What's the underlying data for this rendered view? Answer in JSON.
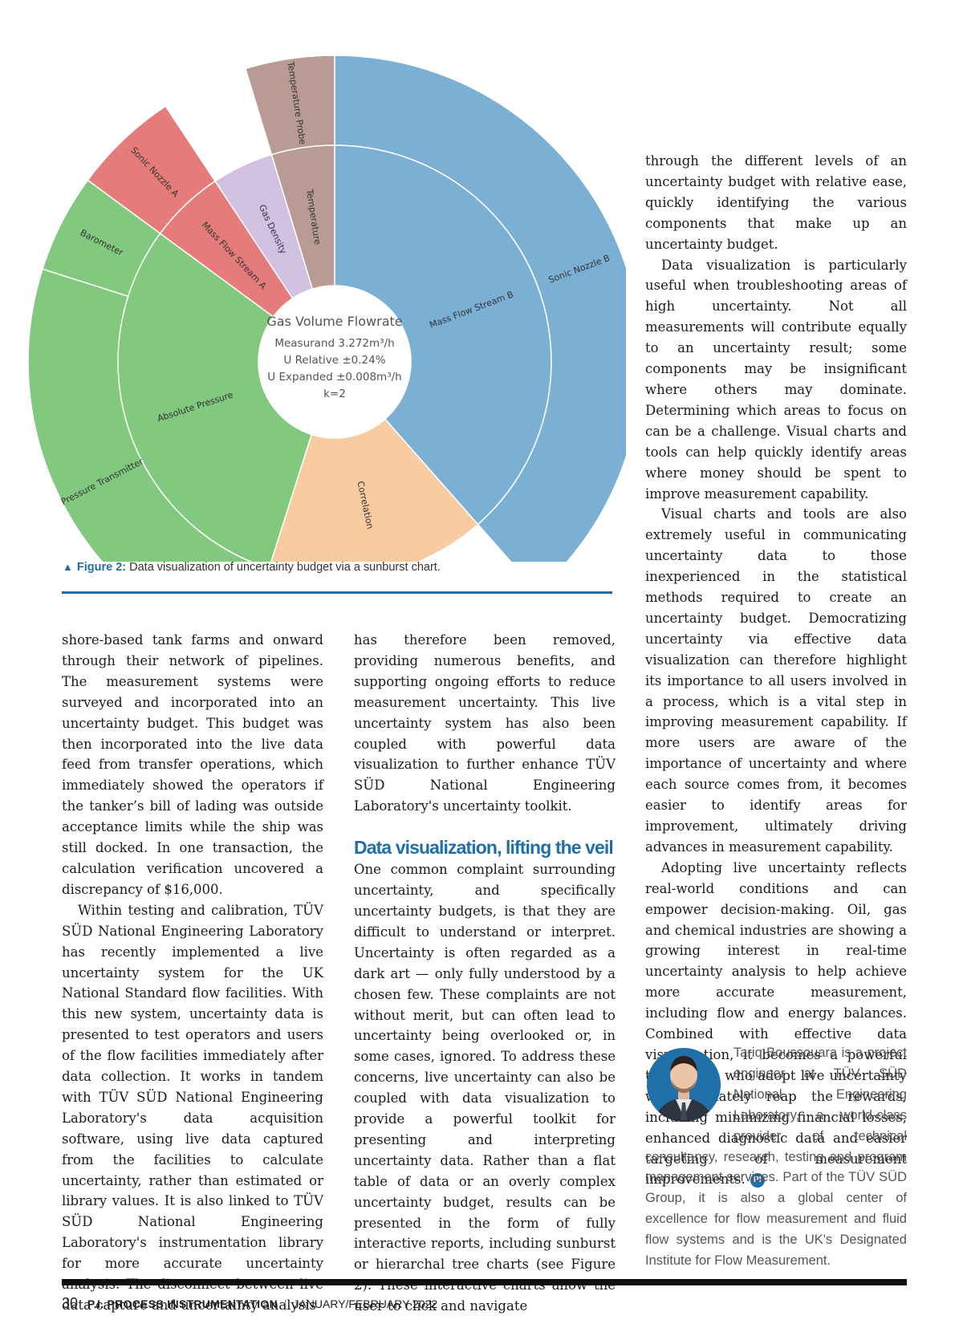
{
  "chart_data": {
    "type": "sunburst",
    "center": {
      "title": "Gas Volume Flowrate",
      "lines": [
        "Measurand 3.272m³/h",
        "U Relative ±0.24%",
        "U Expanded ±0.008m³/h",
        "k=2"
      ]
    },
    "inner_ring": [
      {
        "name": "Mass Flow Stream B",
        "share": 0.385,
        "color": "#7bafd4"
      },
      {
        "name": "Correlation",
        "share": 0.164,
        "color": "#f8cba0"
      },
      {
        "name": "Absolute Pressure",
        "share": 0.302,
        "color": "#82c87e"
      },
      {
        "name": "Mass Flow Stream A",
        "share": 0.056,
        "color": "#e57b7b"
      },
      {
        "name": "Gas Density",
        "share": 0.046,
        "color": "#d2c0e2"
      },
      {
        "name": "Temperature",
        "share": 0.047,
        "color": "#b99b93"
      }
    ],
    "outer_ring": [
      {
        "name": "Sonic Nozzle B",
        "parent": "Mass Flow Stream B",
        "share": 0.385,
        "color": "#7bafd4"
      },
      {
        "name": "Pressure Transmitter",
        "parent": "Absolute Pressure",
        "share": 0.25,
        "color": "#82c87e"
      },
      {
        "name": "Barometer",
        "parent": "Absolute Pressure",
        "share": 0.052,
        "color": "#82c87e"
      },
      {
        "name": "Sonic Nozzle A",
        "parent": "Mass Flow Stream A",
        "share": 0.056,
        "color": "#e57b7b"
      },
      {
        "name": "Temperature Probe",
        "parent": "Temperature",
        "share": 0.047,
        "color": "#b99b93"
      }
    ]
  },
  "figure": {
    "caption_label": "Figure 2:",
    "caption_text": "Data visualization of uncertainty budget via a sunburst chart."
  },
  "article": {
    "col1": [
      "shore-based tank farms and onward through their network of pipelines. The measurement systems were surveyed and incorporated into an uncertainty budget. This budget was then incorporated into the live data feed from transfer operations, which immediately showed the operators if the tanker’s bill of lading was outside acceptance limits while the ship was still docked. In one transaction, the calculation verification uncovered a discrepancy of $16,000.",
      "Within testing and calibration, TÜV SÜD National Engineering Laboratory has recently implemented a live uncertainty system for the UK National Standard flow facilities. With this new system, uncertainty data is presented to test operators and users of the flow facilities immediately after data collection. It works in tandem with TÜV SÜD National Engineering Laboratory's data acquisition software, using live data captured from the facilities to calculate uncertainty, rather than estimated or library values. It is also linked to TÜV SÜD National Engineering Laboratory's instrumentation library for more accurate uncertainty analysis. The disconnect between live data capture and uncertainty analysis"
    ],
    "col2_p1": "has therefore been removed, providing numerous benefits, and supporting ongoing efforts to reduce measurement uncertainty. This live uncertainty system has also been coupled with powerful data visualization to further enhance TÜV SÜD National Engineering Laboratory's uncertainty toolkit.",
    "heading": "Data visualization, lifting the veil",
    "col2_p2": "One common complaint surrounding uncertainty, and specifically uncertainty budgets, is that they are difficult to understand or interpret. Uncertainty is often regarded as a dark art — only fully understood by a chosen few. These complaints are not without merit, but can often lead to uncertainty being overlooked or, in some cases, ignored. To address these concerns, live uncertainty can also be coupled with data visualization to provide a powerful toolkit for presenting and interpreting uncertainty data. Rather than a flat table of data or an overly complex uncertainty budget, results can be presented in the form of fully interactive reports, including sunburst or hierarchal tree charts (see Figure 2). These interactive charts allow the user to click and navigate",
    "col3": [
      "through the different levels of an uncertainty budget with relative ease, quickly identifying the various components that make up an uncertainty budget.",
      "Data visualization is particularly useful when troubleshooting areas of high uncertainty. Not all measurements will contribute equally to an uncertainty result; some components may be insignificant where others may dominate. Determining which areas to focus on can be a challenge. Visual charts and tools can help quickly identify areas where money should be spent to improve measurement capability.",
      "Visual charts and tools are also extremely useful in communicating uncertainty data to those inexperienced in the statistical methods required to create an uncertainty budget. Democratizing uncertainty via effective data visualization can therefore highlight its importance to all users involved in a process, which is a vital step in improving measurement capability. If more users are aware of the importance of uncertainty and where each source comes from, it becomes easier to identify areas for improvement, ultimately driving advances in measurement capability.",
      "Adopting live uncertainty reflects real-world conditions and can empower decision-making. Oil, gas and chemical industries are showing a growing interest in real-time uncertainty analysis to help achieve more accurate measurement, including flow and energy balances. Combined with effective data visualization, it becomes a powerful tool. Those who adopt live uncertainty will ultimately reap the rewards, including minimizing financial losses, enhanced diagnostic data and easier targeting of measurement improvements."
    ],
    "end_logo": "PI"
  },
  "bio": {
    "text": "Tariq Boussouara is a project engineer at TÜV SÜD National Engineering Laboratory, a world-class provider of technical consultancy, research, testing and program management services. Part of the TÜV SÜD Group, it is also a global center of excellence for flow measurement and fluid flow systems and is the UK's Designated Institute for Flow Measurement."
  },
  "footer": {
    "page": "30",
    "publication": "P.I. PROCESS INSTRUMENTATION",
    "separator": "|",
    "issue": "JANUARY/FEBRUARY 2022"
  }
}
